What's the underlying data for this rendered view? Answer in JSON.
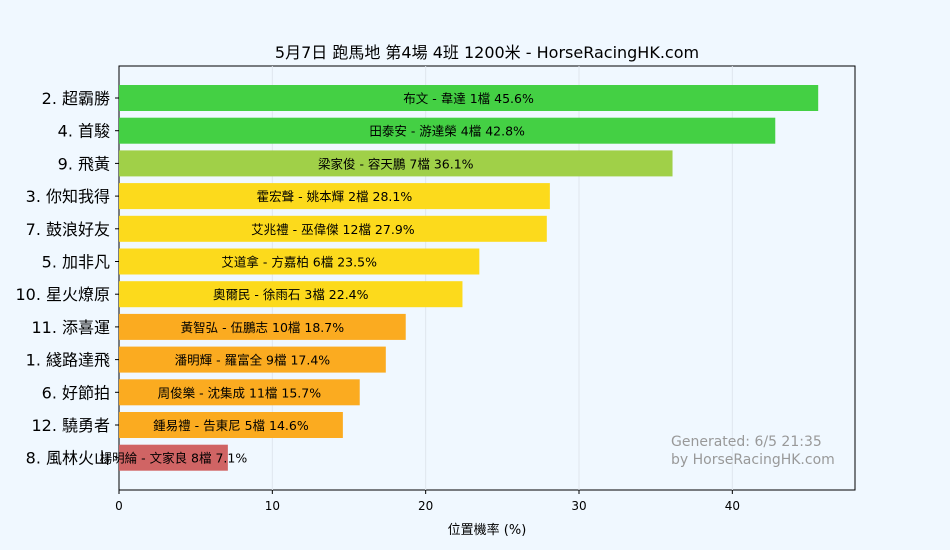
{
  "chart_data": {
    "type": "bar",
    "orientation": "horizontal",
    "title": "5月7日  跑馬地  第4場  4班  1200米 - HorseRacingHK.com",
    "xlabel": "位置機率 (%)",
    "ylabel": "",
    "xlim": [
      0,
      48
    ],
    "xticks": [
      "0",
      "10",
      "20",
      "30",
      "40"
    ],
    "grid": "x",
    "categories": [
      "2. 超霸勝",
      "4. 首駿",
      "9. 飛黃",
      "3. 你知我得",
      "7. 鼓浪好友",
      "5. 加非凡",
      "10. 星火燎原",
      "11. 添喜運",
      "1. 綫路達飛",
      "6. 好節拍",
      "12. 驍勇者",
      "8. 風林火山"
    ],
    "values": [
      45.6,
      42.8,
      36.1,
      28.1,
      27.9,
      23.5,
      22.4,
      18.7,
      17.4,
      15.7,
      14.6,
      7.1
    ],
    "bar_labels": [
      "布文 - 韋達 1檔  45.6%",
      "田泰安 - 游達榮 4檔  42.8%",
      "梁家俊 - 容天鵬 7檔  36.1%",
      "霍宏聲 - 姚本輝 2檔  28.1%",
      "艾兆禮 - 巫偉傑 12檔  27.9%",
      "艾道拿 - 方嘉柏 6檔  23.5%",
      "奧爾民 - 徐雨石 3檔  22.4%",
      "黃智弘 - 伍鵬志 10檔  18.7%",
      "潘明輝 - 羅富全 9檔  17.4%",
      "周俊樂 - 沈集成 11檔  15.7%",
      "鍾易禮 - 告東尼 5檔  14.6%",
      "楊明綸 - 文家良 8檔  7.1%"
    ],
    "colors": [
      "#44d044",
      "#44d044",
      "#a0d048",
      "#fcda1c",
      "#fcda1c",
      "#fcda1c",
      "#fcda1c",
      "#fbab20",
      "#fbab20",
      "#fbab20",
      "#fbab20",
      "#d06464"
    ],
    "annotation": [
      "Generated: 6/5 21:35",
      "by HorseRacingHK.com"
    ]
  }
}
